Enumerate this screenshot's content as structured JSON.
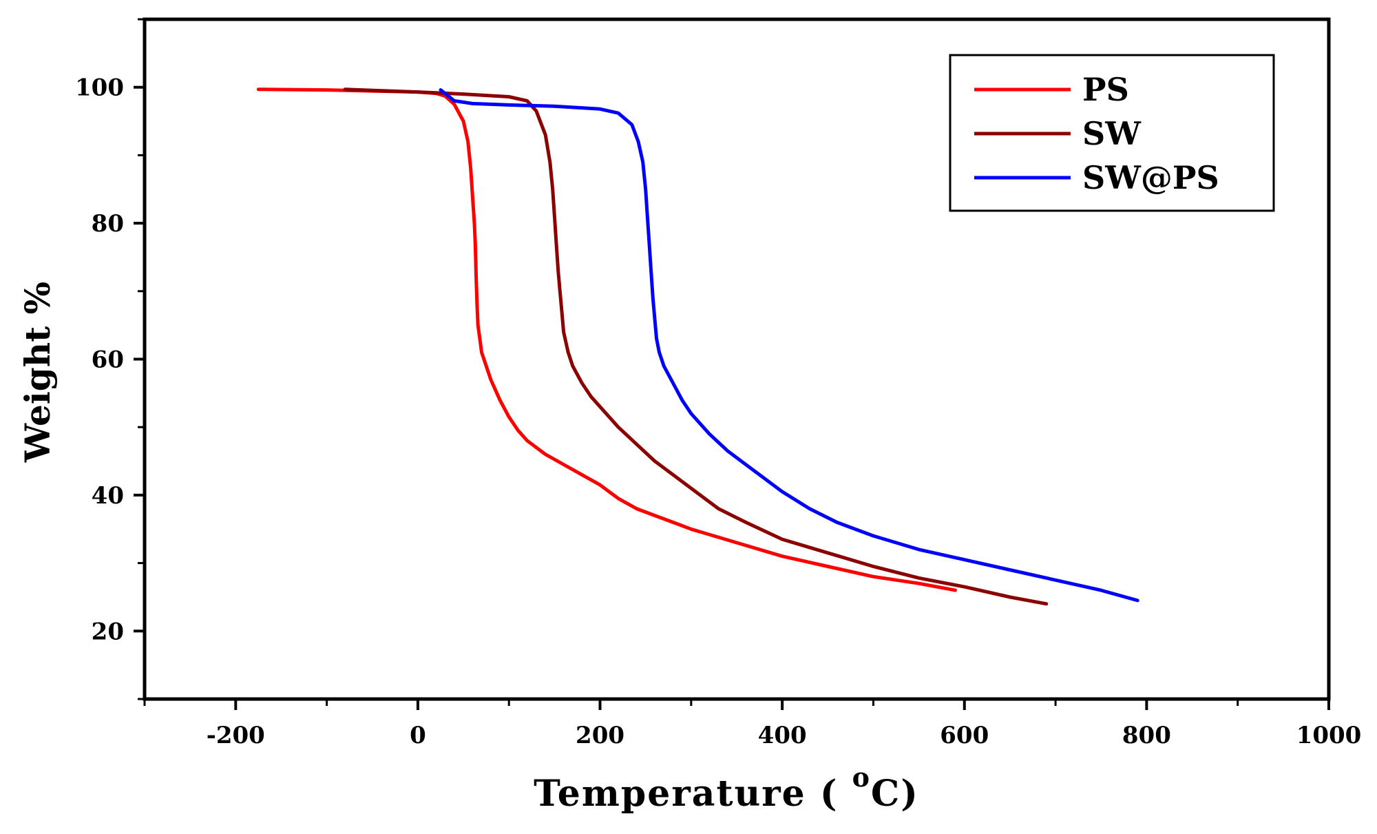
{
  "chart_data": {
    "type": "line",
    "title": "",
    "xlabel": "Temperature ( ",
    "xlabel_sup": "o",
    "xlabel_unit": "C)",
    "ylabel": "Weight %",
    "xlim": [
      -300,
      1000
    ],
    "ylim": [
      10,
      110
    ],
    "xticks": [
      -200,
      0,
      200,
      400,
      600,
      800,
      1000
    ],
    "yticks": [
      20,
      40,
      60,
      80,
      100
    ],
    "grid": false,
    "legend_position": "top-right",
    "series": [
      {
        "name": "PS",
        "color": "#ff0000",
        "x": [
          -175,
          -100,
          0,
          20,
          30,
          40,
          50,
          55,
          58,
          60,
          62,
          63,
          64,
          65,
          66,
          68,
          70,
          75,
          80,
          90,
          100,
          110,
          120,
          140,
          160,
          180,
          200,
          220,
          240,
          260,
          280,
          300,
          350,
          400,
          450,
          500,
          550,
          590
        ],
        "y": [
          99.7,
          99.6,
          99.3,
          99.1,
          98.7,
          97.5,
          95,
          92,
          88,
          84,
          80,
          77,
          72,
          68,
          65,
          63,
          61,
          59,
          57,
          54,
          51.5,
          49.5,
          48,
          46,
          44.5,
          43,
          41.5,
          39.5,
          38,
          37,
          36,
          35,
          33,
          31,
          29.5,
          28,
          27,
          26
        ]
      },
      {
        "name": "SW",
        "color": "#8b0000",
        "x": [
          -80,
          0,
          50,
          100,
          120,
          130,
          140,
          145,
          148,
          150,
          152,
          154,
          156,
          158,
          160,
          165,
          170,
          180,
          190,
          200,
          220,
          240,
          260,
          280,
          300,
          330,
          360,
          400,
          450,
          500,
          550,
          600,
          650,
          690
        ],
        "y": [
          99.7,
          99.3,
          99,
          98.6,
          98,
          96.5,
          93,
          89,
          85,
          81,
          77,
          73,
          70,
          67,
          64,
          61,
          59,
          56.5,
          54.5,
          53,
          50,
          47.5,
          45,
          43,
          41,
          38,
          36,
          33.5,
          31.5,
          29.5,
          27.8,
          26.5,
          25,
          24
        ]
      },
      {
        "name": "SW@PS",
        "color": "#0000ff",
        "x": [
          25,
          40,
          60,
          100,
          150,
          200,
          220,
          235,
          242,
          247,
          250,
          252,
          254,
          256,
          258,
          260,
          262,
          265,
          270,
          280,
          290,
          300,
          320,
          340,
          360,
          380,
          400,
          430,
          460,
          500,
          550,
          600,
          650,
          700,
          750,
          790
        ],
        "y": [
          99.6,
          98,
          97.6,
          97.4,
          97.2,
          96.8,
          96.2,
          94.5,
          92,
          89,
          85,
          81,
          77,
          73,
          69,
          66,
          63,
          61,
          59,
          56.5,
          54,
          52,
          49,
          46.5,
          44.5,
          42.5,
          40.5,
          38,
          36,
          34,
          32,
          30.5,
          29,
          27.5,
          26,
          24.5
        ]
      }
    ]
  }
}
